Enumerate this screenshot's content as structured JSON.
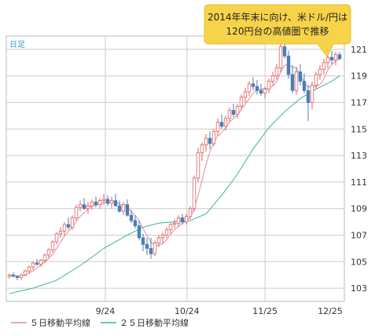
{
  "chart_data": {
    "type": "candlestick",
    "period_label": "日足",
    "annotation": [
      "2014年年末に向け、米ドル/円は",
      "120円台の高値圏で推移"
    ],
    "y_ticks": [
      103,
      105,
      107,
      109,
      111,
      113,
      115,
      117,
      119,
      121
    ],
    "ylim": [
      102,
      122
    ],
    "x_ticks": [
      "9/24",
      "10/24",
      "11/25",
      "12/25"
    ],
    "legend": [
      {
        "name": "５日移動平均線",
        "color": "#d9909a"
      },
      {
        "name": "２５日移動平均線",
        "color": "#3cb88a"
      }
    ],
    "colors": {
      "up": "#e06060",
      "down": "#4a7fb5",
      "grid": "#cccccc",
      "callout_bg": "#f7d34a"
    },
    "ohlc": [
      [
        103.9,
        104.1,
        103.7,
        104.0
      ],
      [
        104.0,
        104.2,
        103.8,
        103.9
      ],
      [
        103.9,
        104.0,
        103.6,
        103.8
      ],
      [
        103.8,
        104.1,
        103.6,
        104.0
      ],
      [
        104.0,
        104.4,
        103.9,
        104.3
      ],
      [
        104.3,
        104.7,
        104.1,
        104.6
      ],
      [
        104.6,
        105.0,
        104.4,
        104.9
      ],
      [
        104.9,
        105.2,
        104.7,
        104.8
      ],
      [
        104.8,
        105.2,
        104.6,
        105.1
      ],
      [
        105.1,
        105.6,
        104.9,
        105.5
      ],
      [
        105.5,
        106.0,
        105.3,
        105.9
      ],
      [
        105.9,
        106.6,
        105.7,
        106.5
      ],
      [
        106.5,
        107.2,
        106.3,
        107.1
      ],
      [
        107.1,
        107.6,
        106.8,
        107.3
      ],
      [
        107.3,
        108.0,
        107.0,
        107.8
      ],
      [
        107.8,
        108.3,
        107.4,
        107.6
      ],
      [
        107.6,
        108.5,
        107.4,
        108.3
      ],
      [
        108.3,
        109.3,
        108.1,
        109.1
      ],
      [
        109.1,
        109.6,
        108.8,
        109.3
      ],
      [
        109.3,
        109.8,
        108.9,
        109.0
      ],
      [
        109.0,
        109.5,
        108.6,
        109.2
      ],
      [
        109.2,
        109.7,
        108.9,
        109.5
      ],
      [
        109.5,
        109.9,
        109.1,
        109.3
      ],
      [
        109.3,
        109.8,
        109.0,
        109.6
      ],
      [
        109.6,
        110.1,
        109.3,
        109.7
      ],
      [
        109.7,
        110.0,
        109.2,
        109.4
      ],
      [
        109.4,
        109.9,
        109.0,
        109.6
      ],
      [
        109.6,
        110.1,
        109.2,
        109.2
      ],
      [
        109.2,
        109.6,
        108.7,
        108.8
      ],
      [
        108.8,
        109.5,
        108.5,
        109.3
      ],
      [
        109.3,
        109.7,
        108.4,
        108.5
      ],
      [
        108.5,
        108.9,
        107.9,
        108.1
      ],
      [
        108.1,
        108.5,
        107.5,
        107.7
      ],
      [
        107.7,
        108.1,
        106.6,
        106.8
      ],
      [
        106.8,
        107.1,
        105.8,
        106.3
      ],
      [
        106.3,
        106.8,
        105.5,
        106.0
      ],
      [
        106.0,
        106.8,
        105.2,
        105.6
      ],
      [
        105.6,
        106.6,
        105.4,
        106.4
      ],
      [
        106.4,
        107.0,
        106.1,
        106.8
      ],
      [
        106.8,
        107.2,
        106.4,
        107.0
      ],
      [
        107.0,
        107.6,
        106.8,
        107.4
      ],
      [
        107.4,
        107.9,
        107.1,
        107.8
      ],
      [
        107.8,
        108.2,
        107.5,
        107.9
      ],
      [
        107.9,
        108.5,
        107.6,
        108.3
      ],
      [
        108.3,
        108.6,
        107.8,
        108.0
      ],
      [
        108.0,
        108.6,
        107.8,
        108.4
      ],
      [
        108.4,
        109.2,
        108.2,
        109.0
      ],
      [
        109.0,
        111.5,
        108.8,
        111.3
      ],
      [
        111.3,
        113.6,
        111.0,
        113.2
      ],
      [
        113.2,
        114.0,
        112.6,
        113.8
      ],
      [
        113.8,
        114.6,
        113.3,
        114.3
      ],
      [
        114.3,
        114.8,
        113.5,
        113.9
      ],
      [
        113.9,
        115.0,
        113.7,
        114.8
      ],
      [
        114.8,
        115.8,
        114.5,
        115.5
      ],
      [
        115.5,
        116.1,
        115.0,
        115.2
      ],
      [
        115.2,
        116.0,
        114.9,
        115.8
      ],
      [
        115.8,
        116.6,
        115.5,
        116.4
      ],
      [
        116.4,
        116.9,
        115.9,
        116.1
      ],
      [
        116.1,
        116.9,
        115.8,
        116.7
      ],
      [
        116.7,
        117.6,
        116.4,
        117.4
      ],
      [
        117.4,
        118.1,
        117.0,
        117.8
      ],
      [
        117.8,
        118.6,
        117.5,
        118.4
      ],
      [
        118.4,
        118.9,
        117.9,
        118.2
      ],
      [
        118.2,
        118.7,
        117.6,
        117.9
      ],
      [
        117.9,
        118.4,
        117.5,
        117.7
      ],
      [
        117.7,
        118.2,
        117.3,
        118.0
      ],
      [
        118.0,
        118.8,
        117.7,
        118.6
      ],
      [
        118.6,
        119.3,
        118.3,
        119.0
      ],
      [
        119.0,
        119.9,
        118.7,
        119.6
      ],
      [
        119.6,
        121.7,
        119.3,
        121.2
      ],
      [
        121.2,
        121.8,
        120.3,
        120.5
      ],
      [
        120.5,
        120.9,
        118.8,
        119.1
      ],
      [
        119.1,
        119.8,
        117.7,
        117.9
      ],
      [
        117.9,
        119.7,
        117.6,
        119.3
      ],
      [
        119.3,
        119.9,
        118.3,
        118.6
      ],
      [
        118.6,
        119.2,
        117.7,
        117.9
      ],
      [
        117.9,
        118.3,
        115.6,
        117.0
      ],
      [
        117.0,
        118.6,
        116.5,
        118.3
      ],
      [
        118.3,
        119.3,
        118.0,
        119.1
      ],
      [
        119.1,
        119.8,
        118.7,
        119.5
      ],
      [
        119.5,
        120.3,
        119.1,
        120.0
      ],
      [
        120.0,
        120.8,
        119.6,
        120.4
      ],
      [
        120.4,
        120.9,
        119.9,
        120.2
      ],
      [
        120.2,
        120.8,
        119.8,
        120.6
      ],
      [
        120.6,
        120.8,
        120.2,
        120.3
      ]
    ],
    "ma25": [
      [
        0,
        102.6
      ],
      [
        6,
        103.0
      ],
      [
        12,
        103.6
      ],
      [
        18,
        104.7
      ],
      [
        24,
        106.0
      ],
      [
        30,
        107.0
      ],
      [
        34,
        107.6
      ],
      [
        38,
        107.9
      ],
      [
        42,
        108.0
      ],
      [
        46,
        108.1
      ],
      [
        50,
        108.6
      ],
      [
        54,
        110.0
      ],
      [
        58,
        111.6
      ],
      [
        62,
        113.5
      ],
      [
        66,
        115.1
      ],
      [
        70,
        116.3
      ],
      [
        74,
        117.3
      ],
      [
        78,
        118.0
      ],
      [
        82,
        118.6
      ],
      [
        84,
        119.0
      ]
    ]
  }
}
